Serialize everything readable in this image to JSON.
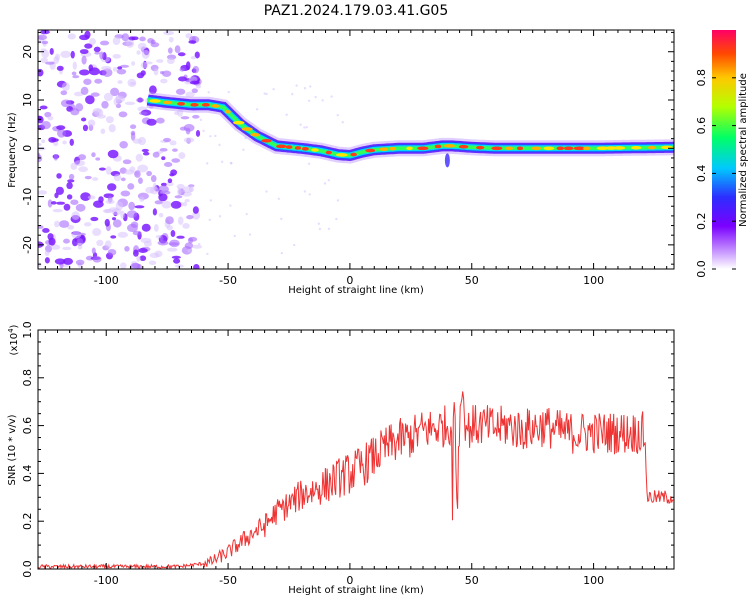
{
  "figure": {
    "title": "PAZ1.2024.179.03.41.G05"
  },
  "chart_data": [
    {
      "type": "heatmap",
      "xlabel": "Height of straight line (km)",
      "ylabel": "Frequency (Hz)",
      "xlim": [
        -128,
        133
      ],
      "ylim": [
        -25,
        24.5
      ],
      "xticks": [
        -100,
        -50,
        0,
        50,
        100
      ],
      "xtick_labels": [
        "-100",
        "-50",
        "0",
        "50",
        "100"
      ],
      "yticks": [
        20,
        10,
        0,
        -10,
        -20
      ],
      "ytick_labels": [
        "20",
        "10",
        "0",
        "-10",
        "-20"
      ],
      "colorbar": {
        "label": "Normalized spectral amplitude",
        "ticks": [
          0.0,
          0.2,
          0.4,
          0.6,
          0.8
        ],
        "tick_labels": [
          "0.0",
          "0.2",
          "0.4",
          "0.6",
          "0.8"
        ],
        "range": [
          0,
          1
        ],
        "colormap": "rainbow"
      },
      "ridge": {
        "x": [
          -83,
          -75,
          -65,
          -58,
          -52,
          -45,
          -38,
          -30,
          -20,
          -12,
          -5,
          0,
          5,
          10,
          20,
          30,
          38,
          42,
          50,
          60,
          80,
          100,
          133
        ],
        "y": [
          10,
          9.5,
          9,
          9,
          8.5,
          5,
          2.5,
          0.5,
          0,
          -0.5,
          -1.3,
          -1.5,
          -0.8,
          -0.3,
          0,
          0,
          0.5,
          0.5,
          0.2,
          0,
          0,
          0,
          0.2
        ]
      },
      "grid": false
    },
    {
      "type": "line",
      "xlabel": "Height of straight line (km)",
      "ylabel": "SNR (10 * v/v)",
      "y_multiplier_label": "(x10",
      "y_multiplier_exp": "4",
      "y_multiplier_close": ")",
      "xlim": [
        -128,
        133
      ],
      "ylim": [
        0,
        1.0
      ],
      "xticks": [
        -100,
        -50,
        0,
        50,
        100
      ],
      "xtick_labels": [
        "-100",
        "-50",
        "0",
        "50",
        "100"
      ],
      "yticks": [
        0.0,
        0.2,
        0.4,
        0.6,
        0.8,
        1.0
      ],
      "ytick_labels": [
        "0.0",
        "0.2",
        "0.4",
        "0.6",
        "0.8",
        "1.0"
      ],
      "series": [
        {
          "color": "#ee3333",
          "x": [
            -128,
            -110,
            -90,
            -70,
            -62,
            -57,
            -50,
            -45,
            -40,
            -35,
            -30,
            -25,
            -20,
            -15,
            -10,
            -5,
            0,
            5,
            10,
            15,
            20,
            25,
            30,
            35,
            40,
            43,
            44,
            45,
            46,
            48,
            50,
            55,
            60,
            65,
            70,
            75,
            80,
            85,
            90,
            95,
            100,
            105,
            110,
            115,
            121,
            122,
            125,
            130,
            133
          ],
          "y": [
            0.01,
            0.01,
            0.01,
            0.01,
            0.02,
            0.03,
            0.07,
            0.11,
            0.15,
            0.18,
            0.24,
            0.27,
            0.31,
            0.33,
            0.35,
            0.38,
            0.4,
            0.43,
            0.47,
            0.51,
            0.54,
            0.55,
            0.58,
            0.59,
            0.6,
            0.62,
            0.25,
            0.65,
            0.72,
            0.58,
            0.6,
            0.6,
            0.59,
            0.6,
            0.58,
            0.59,
            0.6,
            0.58,
            0.57,
            0.57,
            0.57,
            0.57,
            0.57,
            0.57,
            0.57,
            0.3,
            0.3,
            0.3,
            0.3
          ]
        }
      ],
      "grid": false
    }
  ]
}
